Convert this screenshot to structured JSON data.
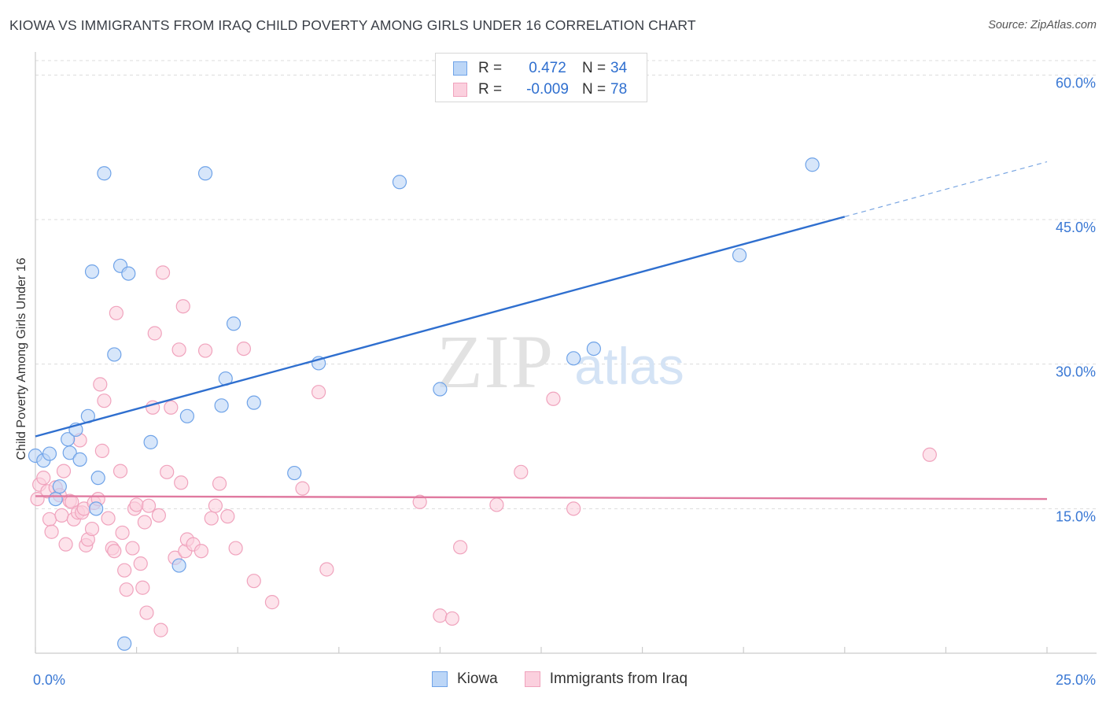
{
  "title": "KIOWA VS IMMIGRANTS FROM IRAQ CHILD POVERTY AMONG GIRLS UNDER 16 CORRELATION CHART",
  "source": "Source: ZipAtlas.com",
  "watermark": {
    "zip": "ZIP",
    "atlas": "atlas"
  },
  "correlation_box": [
    {
      "r_label": "R =",
      "r_value": "0.472",
      "n_label": "N =",
      "n_value": "34",
      "color": "#6fa3e8",
      "fill": "#bcd6f7"
    },
    {
      "r_label": "R =",
      "r_value": "-0.009",
      "n_label": "N =",
      "n_value": "78",
      "color": "#f0a3bd",
      "fill": "#fbd0de"
    }
  ],
  "legend": [
    {
      "label": "Kiowa",
      "color": "#6fa3e8",
      "fill": "#bcd6f7"
    },
    {
      "label": "Immigrants from Iraq",
      "color": "#f0a3bd",
      "fill": "#fbd0de"
    }
  ],
  "chart_data": {
    "type": "scatter",
    "title": "KIOWA VS IMMIGRANTS FROM IRAQ CHILD POVERTY AMONG GIRLS UNDER 16 CORRELATION CHART",
    "xlabel": "",
    "ylabel": "Child Poverty Among Girls Under 16",
    "xlim": [
      0,
      25
    ],
    "ylim": [
      0,
      61.5
    ],
    "x_tick_labels": [
      "0.0%",
      "25.0%"
    ],
    "y_ticks": [
      15,
      30,
      45,
      60
    ],
    "y_tick_labels": [
      "15.0%",
      "30.0%",
      "45.0%",
      "60.0%"
    ],
    "grid": true,
    "series": [
      {
        "name": "Kiowa",
        "color": "#6fa3e8",
        "fill": "#bcd6f7",
        "trend": {
          "x0": 0,
          "y0": 22.5,
          "x1": 20,
          "y1": 45.3,
          "dash_to_x": 25,
          "dash_to_y": 51
        },
        "points": [
          [
            0.0,
            20.5
          ],
          [
            0.2,
            20.0
          ],
          [
            0.35,
            20.7
          ],
          [
            0.5,
            16.0
          ],
          [
            0.6,
            17.3
          ],
          [
            0.8,
            22.2
          ],
          [
            0.85,
            20.8
          ],
          [
            1.0,
            23.2
          ],
          [
            1.1,
            20.1
          ],
          [
            1.3,
            24.6
          ],
          [
            1.4,
            39.6
          ],
          [
            1.5,
            15.0
          ],
          [
            1.55,
            18.2
          ],
          [
            1.7,
            49.8
          ],
          [
            1.95,
            31.0
          ],
          [
            2.1,
            40.2
          ],
          [
            2.2,
            1.0
          ],
          [
            2.3,
            39.4
          ],
          [
            2.85,
            21.9
          ],
          [
            3.55,
            9.1
          ],
          [
            3.75,
            24.6
          ],
          [
            4.2,
            49.8
          ],
          [
            4.6,
            25.7
          ],
          [
            4.7,
            28.5
          ],
          [
            4.9,
            34.2
          ],
          [
            5.4,
            26.0
          ],
          [
            6.4,
            18.7
          ],
          [
            7.0,
            30.1
          ],
          [
            9.0,
            48.9
          ],
          [
            10.0,
            27.4
          ],
          [
            13.3,
            30.6
          ],
          [
            13.8,
            31.6
          ],
          [
            17.4,
            41.3
          ],
          [
            19.2,
            50.7
          ]
        ]
      },
      {
        "name": "Immigrants from Iraq",
        "color": "#f0a3bd",
        "fill": "#fbd0de",
        "trend": {
          "x0": 0,
          "y0": 16.3,
          "x1": 25,
          "y1": 16.0
        },
        "points": [
          [
            0.05,
            16.0
          ],
          [
            0.1,
            17.5
          ],
          [
            0.2,
            18.2
          ],
          [
            0.3,
            16.8
          ],
          [
            0.35,
            13.9
          ],
          [
            0.4,
            12.6
          ],
          [
            0.5,
            17.2
          ],
          [
            0.6,
            16.4
          ],
          [
            0.65,
            14.3
          ],
          [
            0.7,
            18.9
          ],
          [
            0.75,
            11.3
          ],
          [
            0.85,
            15.8
          ],
          [
            0.9,
            15.7
          ],
          [
            0.95,
            13.9
          ],
          [
            1.05,
            14.6
          ],
          [
            1.1,
            22.1
          ],
          [
            1.15,
            14.6
          ],
          [
            1.2,
            15.0
          ],
          [
            1.25,
            11.2
          ],
          [
            1.3,
            11.8
          ],
          [
            1.4,
            12.9
          ],
          [
            1.45,
            15.6
          ],
          [
            1.55,
            16.0
          ],
          [
            1.6,
            27.9
          ],
          [
            1.65,
            21.0
          ],
          [
            1.7,
            26.2
          ],
          [
            1.8,
            14.0
          ],
          [
            1.9,
            10.9
          ],
          [
            1.95,
            10.6
          ],
          [
            2.0,
            35.3
          ],
          [
            2.1,
            18.9
          ],
          [
            2.15,
            12.5
          ],
          [
            2.2,
            8.6
          ],
          [
            2.25,
            6.6
          ],
          [
            2.4,
            10.9
          ],
          [
            2.45,
            15.0
          ],
          [
            2.5,
            15.4
          ],
          [
            2.6,
            9.3
          ],
          [
            2.65,
            6.8
          ],
          [
            2.7,
            13.6
          ],
          [
            2.75,
            4.2
          ],
          [
            2.8,
            15.3
          ],
          [
            2.9,
            25.5
          ],
          [
            2.95,
            33.2
          ],
          [
            3.05,
            14.3
          ],
          [
            3.1,
            2.4
          ],
          [
            3.15,
            39.5
          ],
          [
            3.25,
            18.8
          ],
          [
            3.35,
            25.5
          ],
          [
            3.45,
            9.9
          ],
          [
            3.55,
            31.5
          ],
          [
            3.6,
            17.7
          ],
          [
            3.65,
            36.0
          ],
          [
            3.7,
            10.6
          ],
          [
            3.75,
            11.8
          ],
          [
            3.9,
            11.3
          ],
          [
            4.1,
            10.6
          ],
          [
            4.2,
            31.4
          ],
          [
            4.35,
            14.0
          ],
          [
            4.45,
            15.3
          ],
          [
            4.55,
            17.6
          ],
          [
            4.75,
            14.2
          ],
          [
            4.95,
            10.9
          ],
          [
            5.15,
            31.6
          ],
          [
            5.4,
            7.5
          ],
          [
            5.85,
            5.3
          ],
          [
            6.6,
            17.1
          ],
          [
            7.0,
            27.1
          ],
          [
            7.2,
            8.7
          ],
          [
            9.5,
            15.7
          ],
          [
            10.0,
            3.9
          ],
          [
            10.3,
            3.6
          ],
          [
            10.5,
            11.0
          ],
          [
            11.4,
            15.4
          ],
          [
            12.0,
            18.8
          ],
          [
            12.8,
            26.4
          ],
          [
            13.3,
            15.0
          ],
          [
            22.1,
            20.6
          ]
        ]
      }
    ]
  }
}
